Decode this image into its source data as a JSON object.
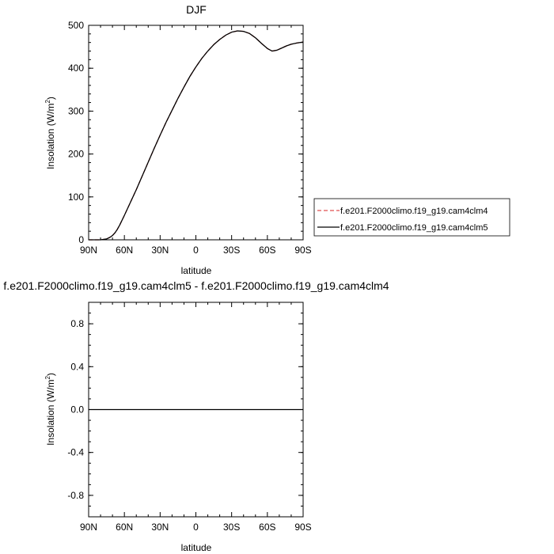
{
  "chart_data": [
    {
      "type": "line",
      "title": "DJF",
      "xlabel": "latitude",
      "ylabel": "Insolation (W/m",
      "ylabel_sup": "2",
      "ylabel_tail": ")",
      "xlim": [
        90,
        -90
      ],
      "ylim": [
        0,
        500
      ],
      "xticks": [
        90,
        60,
        30,
        0,
        -30,
        -60,
        -90
      ],
      "xtick_labels": [
        "90N",
        "60N",
        "30N",
        "0",
        "30S",
        "60S",
        "90S"
      ],
      "yticks": [
        0,
        100,
        200,
        300,
        400,
        500
      ],
      "ytick_labels": [
        "0",
        "100",
        "200",
        "300",
        "400",
        "500"
      ],
      "grid": false,
      "legend_position": "right",
      "x": [
        90,
        85,
        80,
        75,
        72,
        70,
        68,
        66,
        64,
        60,
        55,
        50,
        45,
        40,
        35,
        30,
        25,
        20,
        15,
        10,
        5,
        0,
        -5,
        -10,
        -15,
        -20,
        -25,
        -30,
        -35,
        -40,
        -45,
        -50,
        -55,
        -60,
        -64,
        -68,
        -72,
        -76,
        -80,
        -85,
        -90
      ],
      "series": [
        {
          "name": "f.e201.F2000climo.f19_g19.cam4clm4",
          "color": "#e05050",
          "dash": "dashed",
          "values": [
            0,
            0,
            0,
            2,
            6,
            10,
            16,
            24,
            34,
            57,
            87,
            117,
            149,
            181,
            213,
            244,
            274,
            302,
            330,
            356,
            381,
            403,
            423,
            440,
            455,
            467,
            477,
            484,
            487,
            486,
            481,
            471,
            458,
            446,
            440,
            442,
            447,
            452,
            456,
            459,
            461
          ]
        },
        {
          "name": "f.e201.F2000climo.f19_g19.cam4clm5",
          "color": "#000000",
          "dash": "solid",
          "values": [
            0,
            0,
            0,
            2,
            6,
            10,
            16,
            24,
            34,
            57,
            87,
            117,
            149,
            181,
            213,
            244,
            274,
            302,
            330,
            356,
            381,
            403,
            423,
            440,
            455,
            467,
            477,
            484,
            487,
            486,
            481,
            471,
            458,
            446,
            440,
            442,
            447,
            452,
            456,
            459,
            461
          ]
        }
      ]
    },
    {
      "type": "line",
      "title": "f.e201.F2000climo.f19_g19.cam4clm5 - f.e201.F2000climo.f19_g19.cam4clm4",
      "xlabel": "latitude",
      "ylabel": "Insolation (W/m",
      "ylabel_sup": "2",
      "ylabel_tail": ")",
      "xlim": [
        90,
        -90
      ],
      "ylim": [
        -1,
        1
      ],
      "xticks": [
        90,
        60,
        30,
        0,
        -30,
        -60,
        -90
      ],
      "xtick_labels": [
        "90N",
        "60N",
        "30N",
        "0",
        "30S",
        "60S",
        "90S"
      ],
      "yticks": [
        -0.8,
        -0.4,
        0,
        0.4,
        0.8
      ],
      "ytick_labels": [
        "-0.8",
        "-0.4",
        "0.0",
        "0.4",
        "0.8"
      ],
      "grid": false,
      "x": [
        90,
        -90
      ],
      "series": [
        {
          "color": "#000000",
          "dash": "solid",
          "values": [
            0,
            0
          ]
        }
      ]
    }
  ]
}
